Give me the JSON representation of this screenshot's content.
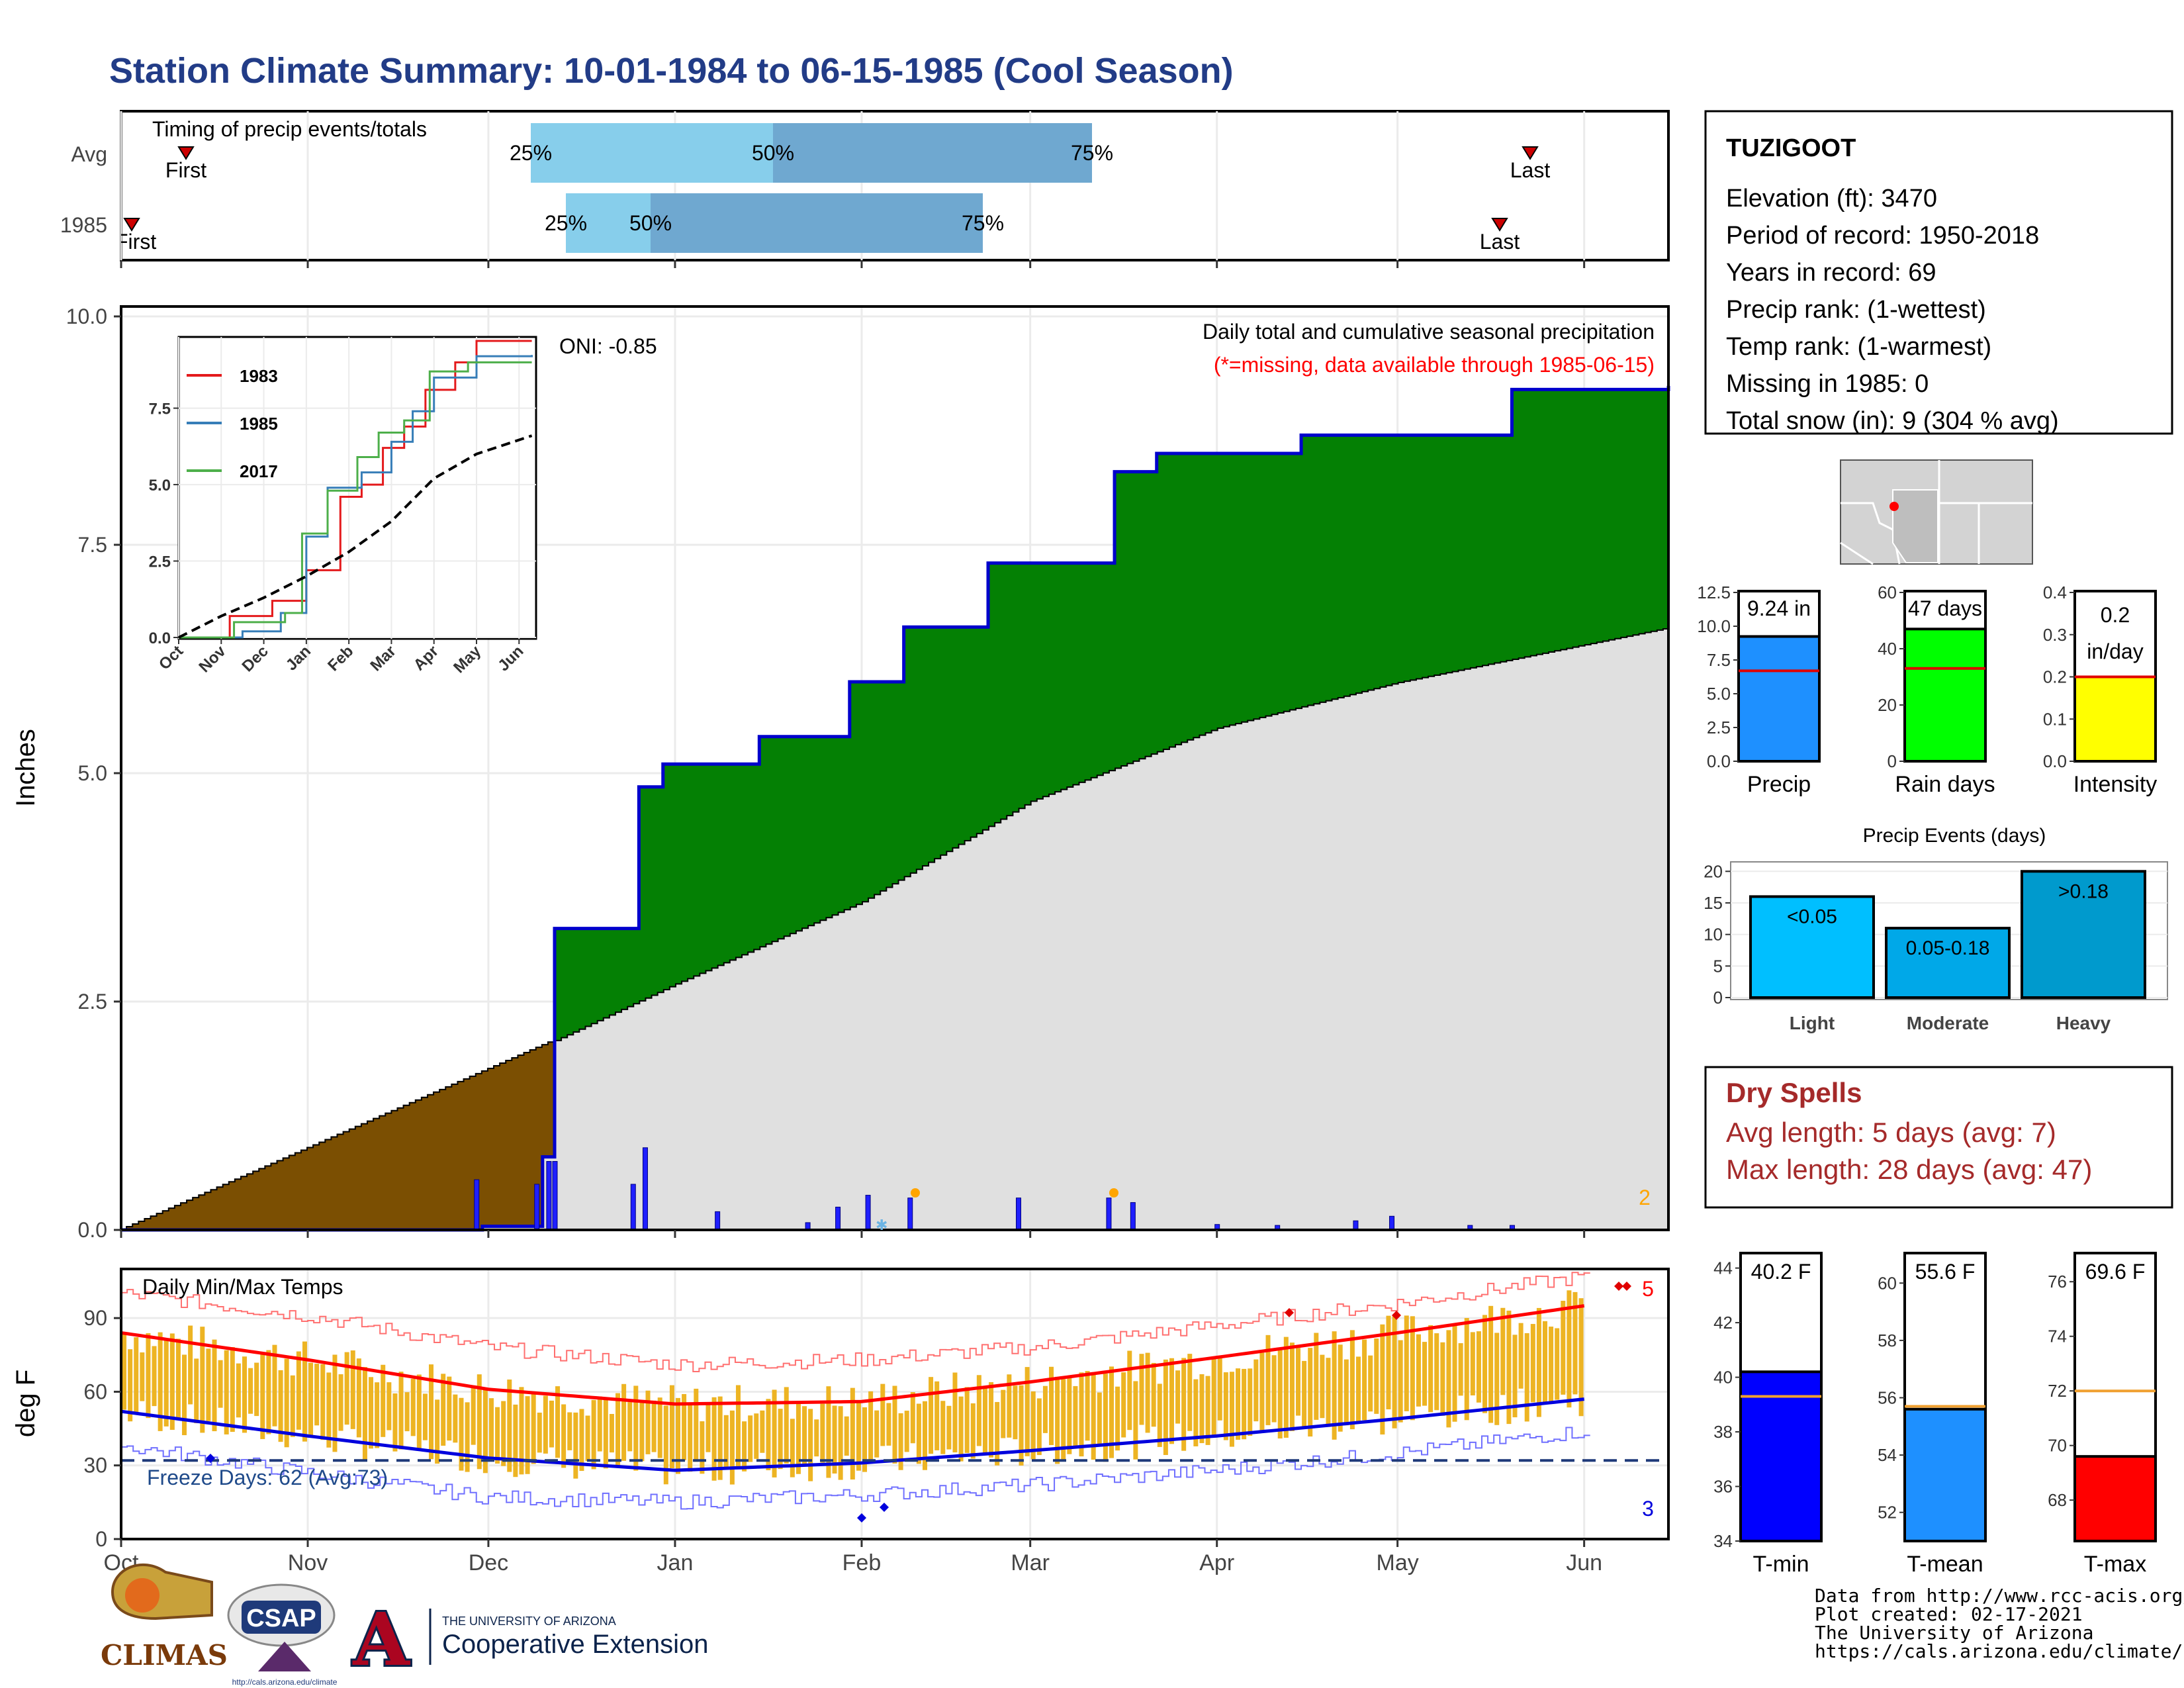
{
  "page_title": "Station Climate Summary: 10-01-1984 to 06-15-1985 (Cool Season)",
  "colors": {
    "title": "#223C87",
    "dry": "#7B4F02",
    "wet": "#048004",
    "cum_line": "#0000CC",
    "bars": "#1F1FFF",
    "grey_area": "#E0E0E0",
    "tbars": "#EDB423",
    "tmax": "#FF0000",
    "tmin": "#0000DD",
    "precip_box": "#1E90FF",
    "raindays_box": "#00FF00",
    "intensity_box": "#FFFF00",
    "light": "#00BFFF",
    "moderate": "#00A8E8",
    "heavy": "#009ACD",
    "dryspell_text": "#A52A2A",
    "tmin_box": "#0000FF",
    "tmean_box": "#1E90FF",
    "tmax_box": "#FF0000"
  },
  "timing": {
    "title": "Timing of precip events/totals",
    "rows": [
      "Avg",
      "1985"
    ],
    "avg": {
      "first_label": "First",
      "last_label": "Last",
      "q25": "25%",
      "q50": "50%",
      "q75": "75%"
    },
    "cur": {
      "first_label": "First",
      "last_label": "Last",
      "q25": "25%",
      "q50": "50%",
      "q75": "75%"
    }
  },
  "main_chart": {
    "ylabel": "Inches",
    "yticks": [
      "0.0",
      "2.5",
      "5.0",
      "7.5",
      "10.0"
    ],
    "subtitle": "Daily total and cumulative seasonal precipitation",
    "missing_note": "(*=missing, data available through 1985-06-15)",
    "oni": "ONI: -0.85",
    "corner_count": "2"
  },
  "inset": {
    "series": [
      "1983",
      "1985",
      "2017"
    ],
    "yticks": [
      "0.0",
      "2.5",
      "5.0",
      "7.5"
    ],
    "xticks": [
      "Oct",
      "Nov",
      "Dec",
      "Jan",
      "Feb",
      "Mar",
      "Apr",
      "May",
      "Jun"
    ]
  },
  "temp_chart": {
    "label": "Daily Min/Max Temps",
    "ylabel": "deg F",
    "yticks": [
      "0",
      "30",
      "60",
      "90"
    ],
    "freeze_note": "Freeze Days: 62 (Avg:73)",
    "count_hot": "5",
    "count_cold": "3",
    "xticks": [
      "Oct",
      "Nov",
      "Dec",
      "Jan",
      "Feb",
      "Mar",
      "Apr",
      "May",
      "Jun"
    ]
  },
  "station": {
    "name": "TUZIGOOT",
    "lines": [
      "Elevation (ft): 3470",
      "Period of record: 1950-2018",
      "Years in record: 69",
      "Precip rank:  (1-wettest)",
      "Temp rank:  (1-warmest)",
      "Missing in 1985: 0",
      "Total snow (in): 9 (304 % avg)"
    ]
  },
  "mini_bars": [
    {
      "label": "Precip",
      "value_text": "9.24 in",
      "value": 9.24,
      "avg": 6.7,
      "ymax": 12.5,
      "yticks": [
        "0.0",
        "2.5",
        "5.0",
        "7.5",
        "10.0",
        "12.5"
      ],
      "tick_vals": [
        0,
        2.5,
        5,
        7.5,
        10,
        12.5
      ]
    },
    {
      "label": "Rain days",
      "value_text": "47 days",
      "value": 47,
      "avg": 33,
      "ymax": 60,
      "yticks": [
        "0",
        "20",
        "40",
        "60"
      ],
      "tick_vals": [
        0,
        20,
        40,
        60
      ]
    },
    {
      "label": "Intensity",
      "value_text": "0.2",
      "value_text2": "in/day",
      "value": 0.2,
      "avg": 0.2,
      "ymax": 0.4,
      "yticks": [
        "0.0",
        "0.1",
        "0.2",
        "0.3",
        "0.4"
      ],
      "tick_vals": [
        0,
        0.1,
        0.2,
        0.3,
        0.4
      ]
    }
  ],
  "events": {
    "title": "Precip Events (days)",
    "categories": [
      "Light",
      "Moderate",
      "Heavy"
    ],
    "values": [
      16,
      11,
      20
    ],
    "labels": [
      "<0.05",
      "0.05-0.18",
      ">0.18"
    ],
    "yticks": [
      "0",
      "5",
      "10",
      "15",
      "20"
    ]
  },
  "dry_spells": {
    "title": "Dry Spells",
    "avg": "Avg length: 5 days (avg: 7)",
    "max": "Max length: 28 days (avg: 47)"
  },
  "temp_bars": [
    {
      "label": "T-min",
      "value_text": "40.2 F",
      "value": 40.2,
      "avg": 39.3,
      "ymin": 34,
      "ymax": 44.5,
      "yticks": [
        "34",
        "36",
        "38",
        "40",
        "42",
        "44"
      ],
      "tick_vals": [
        34,
        36,
        38,
        40,
        42,
        44
      ]
    },
    {
      "label": "T-mean",
      "value_text": "55.6 F",
      "value": 55.6,
      "avg": 55.7,
      "ymin": 51,
      "ymax": 61,
      "yticks": [
        "52",
        "54",
        "56",
        "58",
        "60"
      ],
      "tick_vals": [
        52,
        54,
        56,
        58,
        60
      ]
    },
    {
      "label": "T-max",
      "value_text": "69.6 F",
      "value": 69.6,
      "avg": 72.0,
      "ymin": 66.5,
      "ymax": 77,
      "yticks": [
        "68",
        "70",
        "72",
        "74",
        "76"
      ],
      "tick_vals": [
        68,
        70,
        72,
        74,
        76
      ]
    }
  ],
  "credits": [
    "Data from http://www.rcc-acis.org/",
    "Plot created: 02-17-2021",
    "The University of Arizona",
    "https://cals.arizona.edu/climate/"
  ],
  "logos": {
    "climas": "CLIMAS",
    "csap": "CSAP",
    "csap_url": "http://cals.arizona.edu/climate",
    "ua_top": "THE UNIVERSITY OF ARIZONA",
    "ua_bottom": "Cooperative Extension"
  },
  "chart_data": [
    {
      "type": "area",
      "title": "Daily total and cumulative seasonal precipitation",
      "ylabel": "Inches",
      "ylim": [
        0,
        10
      ],
      "x_range": [
        "1984-10-01",
        "1985-06-15"
      ],
      "series": [
        {
          "name": "1985",
          "x": [
            "1984-10-01",
            "1984-11-30",
            "1984-12-10",
            "1984-12-12",
            "1984-12-26",
            "1984-12-30",
            "1985-01-15",
            "1985-01-30",
            "1985-02-08",
            "1985-02-22",
            "1985-03-15",
            "1985-03-22",
            "1985-04-15",
            "1985-05-20",
            "1985-06-15"
          ],
          "values": [
            0.0,
            0.04,
            0.8,
            3.3,
            4.85,
            5.1,
            5.4,
            6.0,
            6.6,
            7.3,
            8.3,
            8.5,
            8.7,
            9.2,
            9.24
          ]
        },
        {
          "name": "avg",
          "x": [
            "1984-10-01",
            "1984-12-11",
            "1985-01-01",
            "1985-02-01",
            "1985-03-01",
            "1985-04-01",
            "1985-05-01",
            "1985-06-15"
          ],
          "values": [
            0.0,
            2.05,
            2.7,
            3.6,
            4.7,
            5.5,
            6.0,
            6.6
          ]
        }
      ],
      "daily_x": [
        "1984-11-29",
        "1984-12-09",
        "1984-12-11",
        "1984-12-12",
        "1984-12-25",
        "1984-12-27",
        "1985-01-08",
        "1985-01-23",
        "1985-01-28",
        "1985-02-02",
        "1985-02-09",
        "1985-02-27",
        "1985-03-14",
        "1985-03-18",
        "1985-04-01",
        "1985-04-11",
        "1985-04-24",
        "1985-04-30",
        "1985-05-13",
        "1985-05-20"
      ],
      "daily_values": [
        0.55,
        0.5,
        0.75,
        0.75,
        0.5,
        0.9,
        0.2,
        0.08,
        0.25,
        0.38,
        0.35,
        0.35,
        0.35,
        0.3,
        0.06,
        0.05,
        0.1,
        0.15,
        0.05,
        0.05
      ]
    },
    {
      "type": "line",
      "xticks": [
        "Oct",
        "Nov",
        "Dec",
        "Jan",
        "Feb",
        "Mar",
        "Apr",
        "May",
        "Jun"
      ],
      "ylim": [
        0,
        9.7
      ],
      "series": [
        {
          "name": "1983",
          "x": [
            0,
            1.2,
            2.2,
            3.0,
            3.8,
            4.3,
            4.8,
            5.3,
            5.8,
            6.5,
            7.0,
            8.3
          ],
          "values": [
            0,
            0.7,
            1.2,
            2.2,
            4.6,
            5.0,
            6.2,
            6.9,
            8.1,
            9.0,
            9.7,
            9.7
          ]
        },
        {
          "name": "1985",
          "x": [
            0,
            1.5,
            2.4,
            3.0,
            3.5,
            4.3,
            5.0,
            5.5,
            6.0,
            7.0,
            8.3
          ],
          "values": [
            0,
            0.2,
            0.8,
            3.3,
            4.9,
            5.4,
            6.4,
            7.4,
            8.5,
            9.2,
            9.24
          ]
        },
        {
          "name": "2017",
          "x": [
            0,
            1.3,
            2.5,
            2.9,
            3.5,
            4.2,
            4.7,
            5.3,
            5.9,
            6.8,
            8.3
          ],
          "values": [
            0,
            0.5,
            0.8,
            3.4,
            4.8,
            5.9,
            6.7,
            7.1,
            8.7,
            9.0,
            9.0
          ]
        },
        {
          "name": "avg",
          "x": [
            0,
            1,
            2,
            3,
            4,
            5,
            6,
            7,
            8.3
          ],
          "values": [
            0,
            0.7,
            1.3,
            2.0,
            2.8,
            3.8,
            5.2,
            6.0,
            6.6
          ]
        }
      ]
    },
    {
      "type": "bar",
      "title": "Daily Min/Max Temps",
      "ylabel": "deg F",
      "ylim": [
        0,
        110
      ],
      "x_range": [
        "1984-10-01",
        "1985-06-15"
      ],
      "monthly_tmax": [
        84,
        73,
        61,
        55,
        56,
        64,
        74,
        84,
        95
      ],
      "monthly_tmin": [
        52,
        42,
        33,
        28,
        31,
        36,
        42,
        49,
        57
      ],
      "avg_tmax": [
        86,
        77,
        64,
        57,
        59,
        64,
        73,
        82,
        93
      ],
      "avg_tmin": [
        52,
        41,
        31,
        29,
        32,
        36,
        42,
        49,
        58
      ],
      "freeze_line": 32
    },
    {
      "type": "bar",
      "title": "Precip Events (days)",
      "categories": [
        "Light",
        "Moderate",
        "Heavy"
      ],
      "values": [
        16,
        11,
        20
      ]
    }
  ]
}
